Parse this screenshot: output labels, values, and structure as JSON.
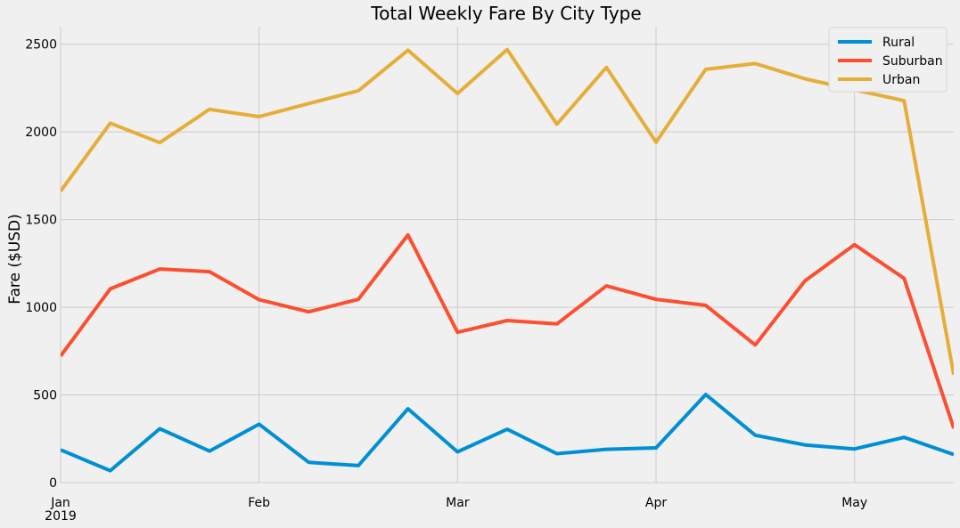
{
  "chart_data": {
    "type": "line",
    "title": "Total Weekly Fare By City Type",
    "xlabel": "",
    "ylabel": "Fare ($USD)",
    "x": [
      "2019-01-06",
      "2019-01-13",
      "2019-01-20",
      "2019-01-27",
      "2019-02-03",
      "2019-02-10",
      "2019-02-17",
      "2019-02-24",
      "2019-03-03",
      "2019-03-10",
      "2019-03-17",
      "2019-03-24",
      "2019-03-31",
      "2019-04-07",
      "2019-04-14",
      "2019-04-21",
      "2019-04-28",
      "2019-05-05",
      "2019-05-12"
    ],
    "xlim": [
      "2019-01-06",
      "2019-05-12"
    ],
    "ylim": [
      0,
      2600
    ],
    "x_ticks": [
      {
        "date": "2019-01-06",
        "label": "Jan",
        "sublabel": "2019"
      },
      {
        "date": "2019-02-03",
        "label": "Feb",
        "sublabel": ""
      },
      {
        "date": "2019-03-03",
        "label": "Mar",
        "sublabel": ""
      },
      {
        "date": "2019-03-31",
        "label": "Apr",
        "sublabel": ""
      },
      {
        "date": "2019-04-28",
        "label": "May",
        "sublabel": ""
      }
    ],
    "y_ticks": [
      0,
      500,
      1000,
      1500,
      2000,
      2500
    ],
    "grid": true,
    "legend_position": "top-right",
    "series": [
      {
        "name": "Rural",
        "color": "#008fd5",
        "values": [
          187,
          68,
          307,
          180,
          333,
          116,
          97,
          421,
          175,
          304,
          165,
          190,
          198,
          502,
          270,
          215,
          192,
          258,
          160
        ]
      },
      {
        "name": "Suburban",
        "color": "#fc4f30",
        "values": [
          722,
          1105,
          1218,
          1203,
          1043,
          974,
          1045,
          1412,
          857,
          924,
          905,
          1122,
          1045,
          1011,
          785,
          1150,
          1357,
          1165,
          310
        ]
      },
      {
        "name": "Urban",
        "color": "#e5ae38",
        "values": [
          1662,
          2050,
          1939,
          2129,
          2087,
          2162,
          2235,
          2466,
          2219,
          2470,
          2044,
          2368,
          1942,
          2357,
          2390,
          2303,
          2240,
          2178,
          615
        ]
      }
    ]
  }
}
